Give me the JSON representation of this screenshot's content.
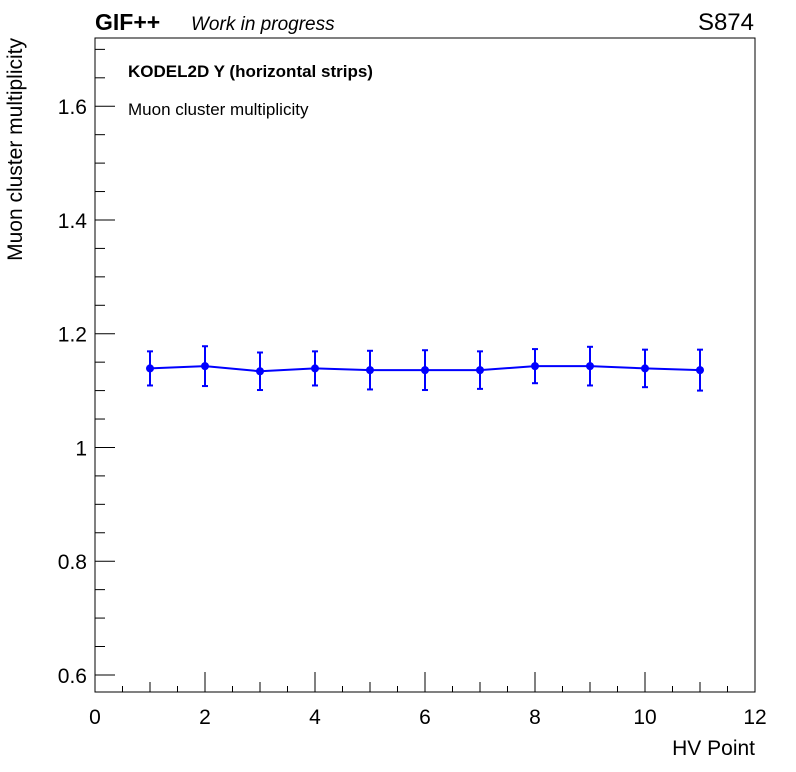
{
  "header": {
    "experiment": "GIF++",
    "status": "Work in progress",
    "run": "S874"
  },
  "chart_data": {
    "type": "scatter",
    "title": "KODEL2D Y (horizontal strips)",
    "subtitle": "Muon cluster multiplicity",
    "xlabel": "HV Point",
    "ylabel": "Muon cluster multiplicity",
    "xlim": [
      0,
      12
    ],
    "ylim": [
      0.57,
      1.72
    ],
    "x_ticks": [
      0,
      2,
      4,
      6,
      8,
      10,
      12
    ],
    "y_ticks": [
      0.6,
      0.8,
      1.0,
      1.2,
      1.4,
      1.6
    ],
    "y_tick_labels": [
      "0.6",
      "0.8",
      "1",
      "1.2",
      "1.4",
      "1.6"
    ],
    "grid": false,
    "series": [
      {
        "color": "#0000ff",
        "x": [
          1,
          2,
          3,
          4,
          5,
          6,
          7,
          8,
          9,
          10,
          11
        ],
        "y": [
          1.139,
          1.143,
          1.134,
          1.139,
          1.136,
          1.136,
          1.136,
          1.143,
          1.143,
          1.139,
          1.136
        ],
        "yerr": [
          0.03,
          0.035,
          0.033,
          0.03,
          0.034,
          0.035,
          0.033,
          0.03,
          0.034,
          0.033,
          0.036
        ]
      }
    ]
  }
}
